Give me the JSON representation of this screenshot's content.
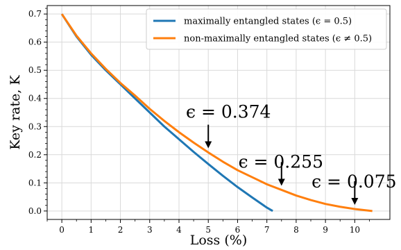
{
  "chart_data": {
    "type": "line",
    "xlabel": "Loss (%)",
    "ylabel": "Key rate, K",
    "xlim": [
      -0.5,
      11.2
    ],
    "ylim": [
      -0.03,
      0.73
    ],
    "xticks": [
      0,
      1,
      2,
      3,
      4,
      5,
      6,
      7,
      8,
      9,
      10
    ],
    "xtick_labels": [
      "0",
      "1",
      "2",
      "3",
      "4",
      "5",
      "6",
      "7",
      "8",
      "9",
      "10"
    ],
    "yticks": [
      0.0,
      0.1,
      0.2,
      0.3,
      0.4,
      0.5,
      0.6,
      0.7
    ],
    "ytick_labels": [
      "0.0",
      "0.1",
      "0.2",
      "0.3",
      "0.4",
      "0.5",
      "0.6",
      "0.7"
    ],
    "grid": true,
    "legend_position": "top-right",
    "series": [
      {
        "name": "maximally entangled states (ϵ = 0.5)",
        "color": "#1f77b4",
        "x": [
          0,
          0.5,
          1,
          1.5,
          2,
          2.5,
          3,
          3.5,
          4,
          4.5,
          5,
          5.5,
          6,
          6.5,
          7,
          7.2
        ],
        "y": [
          0.7,
          0.62,
          0.555,
          0.5,
          0.45,
          0.4,
          0.35,
          0.3,
          0.255,
          0.21,
          0.167,
          0.125,
          0.085,
          0.048,
          0.012,
          0.0
        ]
      },
      {
        "name": "non-maximally entangled states (ϵ ≠ 0.5)",
        "color": "#ff7f0e",
        "x": [
          0,
          0.5,
          1,
          1.5,
          2,
          2.5,
          3,
          3.5,
          4,
          4.5,
          5,
          5.5,
          6,
          6.5,
          7,
          7.5,
          8,
          8.5,
          9,
          9.5,
          10,
          10.6
        ],
        "y": [
          0.7,
          0.623,
          0.56,
          0.505,
          0.455,
          0.41,
          0.363,
          0.32,
          0.28,
          0.243,
          0.208,
          0.175,
          0.145,
          0.12,
          0.095,
          0.075,
          0.055,
          0.039,
          0.025,
          0.015,
          0.007,
          0.0
        ]
      }
    ],
    "annotations": [
      {
        "text": "ϵ = 0.374",
        "x": 5.0,
        "y": 0.208
      },
      {
        "text": "ϵ = 0.255",
        "x": 7.5,
        "y": 0.075
      },
      {
        "text": "ϵ = 0.075",
        "x": 10.0,
        "y": 0.007
      }
    ]
  }
}
